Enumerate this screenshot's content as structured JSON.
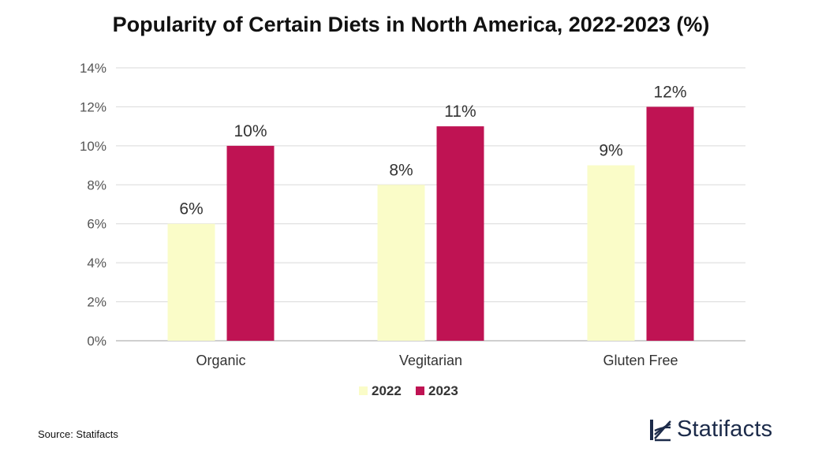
{
  "chart_data": {
    "type": "bar",
    "title": "Popularity of Certain Diets in North America, 2022-2023 (%)",
    "categories": [
      "Organic",
      "Vegitarian",
      "Gluten Free"
    ],
    "series": [
      {
        "name": "2022",
        "values": [
          6,
          8,
          9
        ],
        "labels": [
          "6%",
          "8%",
          "9%"
        ],
        "color": "#fafcc8"
      },
      {
        "name": "2023",
        "values": [
          10,
          11,
          12
        ],
        "labels": [
          "10%",
          "11%",
          "12%"
        ],
        "color": "#bf1353"
      }
    ],
    "ylim": [
      0,
      14
    ],
    "yticks": [
      0,
      2,
      4,
      6,
      8,
      10,
      12,
      14
    ],
    "ytick_labels": [
      "0%",
      "2%",
      "4%",
      "6%",
      "8%",
      "10%",
      "12%",
      "14%"
    ],
    "xlabel": "",
    "ylabel": "",
    "grid": true,
    "legend_position": "bottom-center"
  },
  "footer": {
    "source": "Source: Statifacts",
    "brand": "Statifacts"
  },
  "colors": {
    "grid": "#d9d9d9",
    "axis": "#bfbfbf",
    "brand": "#1c2b4a"
  }
}
